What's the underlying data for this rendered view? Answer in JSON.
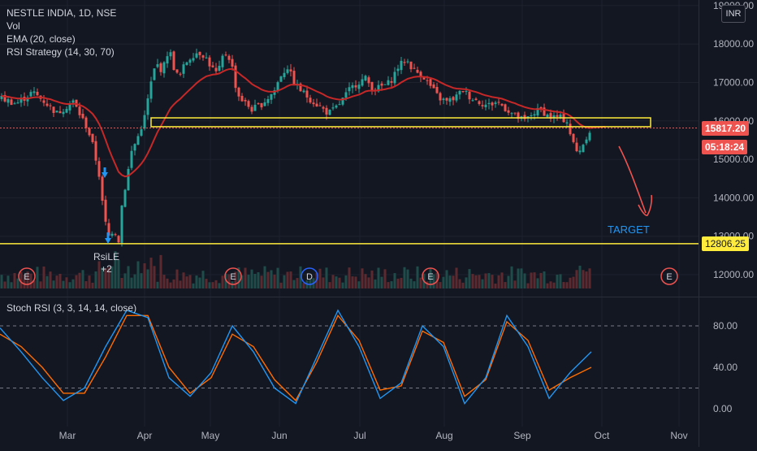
{
  "legend": {
    "title": "NESTLE INDIA, 1D, NSE",
    "vol": "Vol",
    "ema": "EMA (20, close)",
    "rsi_strategy": "RSI Strategy (14, 30, 70)"
  },
  "oscillator": {
    "title": "Stoch RSI (3, 3, 14, 14, close)"
  },
  "currency": "INR",
  "tags": {
    "price": "15817.20",
    "timer": "05:18:24",
    "level": "12806.25"
  },
  "annotations": {
    "target": "TARGET",
    "signal": "RsiLE",
    "signal_qty": "+2"
  },
  "events": [
    "E",
    "E",
    "D",
    "E",
    "E"
  ],
  "colors": {
    "bg": "#131722",
    "up": "#26a69a",
    "down": "#ef5350",
    "ema": "#c62828",
    "k": "#2196f3",
    "d": "#ff6d00",
    "yellow": "#ffeb3b",
    "target": "#2196f3"
  },
  "chart_data": [
    {
      "type": "candlestick",
      "title": "NESTLE INDIA, 1D, NSE",
      "y_ticks": [
        12000,
        13000,
        14000,
        15000,
        16000,
        17000,
        18000,
        19000
      ],
      "ylim": [
        11800,
        19050
      ],
      "x_ticks": [
        "Mar",
        "Apr",
        "May",
        "Jun",
        "Jul",
        "Aug",
        "Sep",
        "Oct",
        "Nov"
      ],
      "current_price": 15817.2,
      "horizontal_lines": [
        12806.25
      ],
      "zone": [
        15850,
        16080
      ],
      "close_approx": [
        {
          "period": "Feb",
          "price": 16500
        },
        {
          "period": "Mar low",
          "price": 12806.25
        },
        {
          "period": "Apr high",
          "price": 18350
        },
        {
          "period": "May",
          "price": 17800
        },
        {
          "period": "Jun",
          "price": 17000
        },
        {
          "period": "Jul",
          "price": 17500
        },
        {
          "period": "Aug",
          "price": 16800
        },
        {
          "period": "Sep",
          "price": 16200
        },
        {
          "period": "Sep low",
          "price": 15150
        },
        {
          "period": "last",
          "price": 15817.2
        }
      ],
      "series": [
        {
          "name": "EMA (20, close)"
        }
      ]
    },
    {
      "type": "line",
      "title": "Stoch RSI (3, 3, 14, 14, close)",
      "y_ticks": [
        0,
        40,
        80
      ],
      "ylim": [
        -5,
        102
      ],
      "levels": [
        20,
        80
      ],
      "series": [
        {
          "name": "K",
          "values": [
            78,
            55,
            30,
            8,
            20,
            60,
            95,
            88,
            30,
            12,
            35,
            80,
            55,
            20,
            5,
            50,
            95,
            60,
            10,
            25,
            80,
            60,
            5,
            30,
            90,
            60,
            10,
            35,
            55
          ]
        },
        {
          "name": "D",
          "values": [
            72,
            60,
            40,
            15,
            15,
            50,
            90,
            90,
            40,
            15,
            30,
            72,
            60,
            28,
            8,
            45,
            90,
            66,
            18,
            22,
            75,
            64,
            12,
            28,
            84,
            66,
            18,
            30,
            40
          ]
        }
      ]
    }
  ]
}
